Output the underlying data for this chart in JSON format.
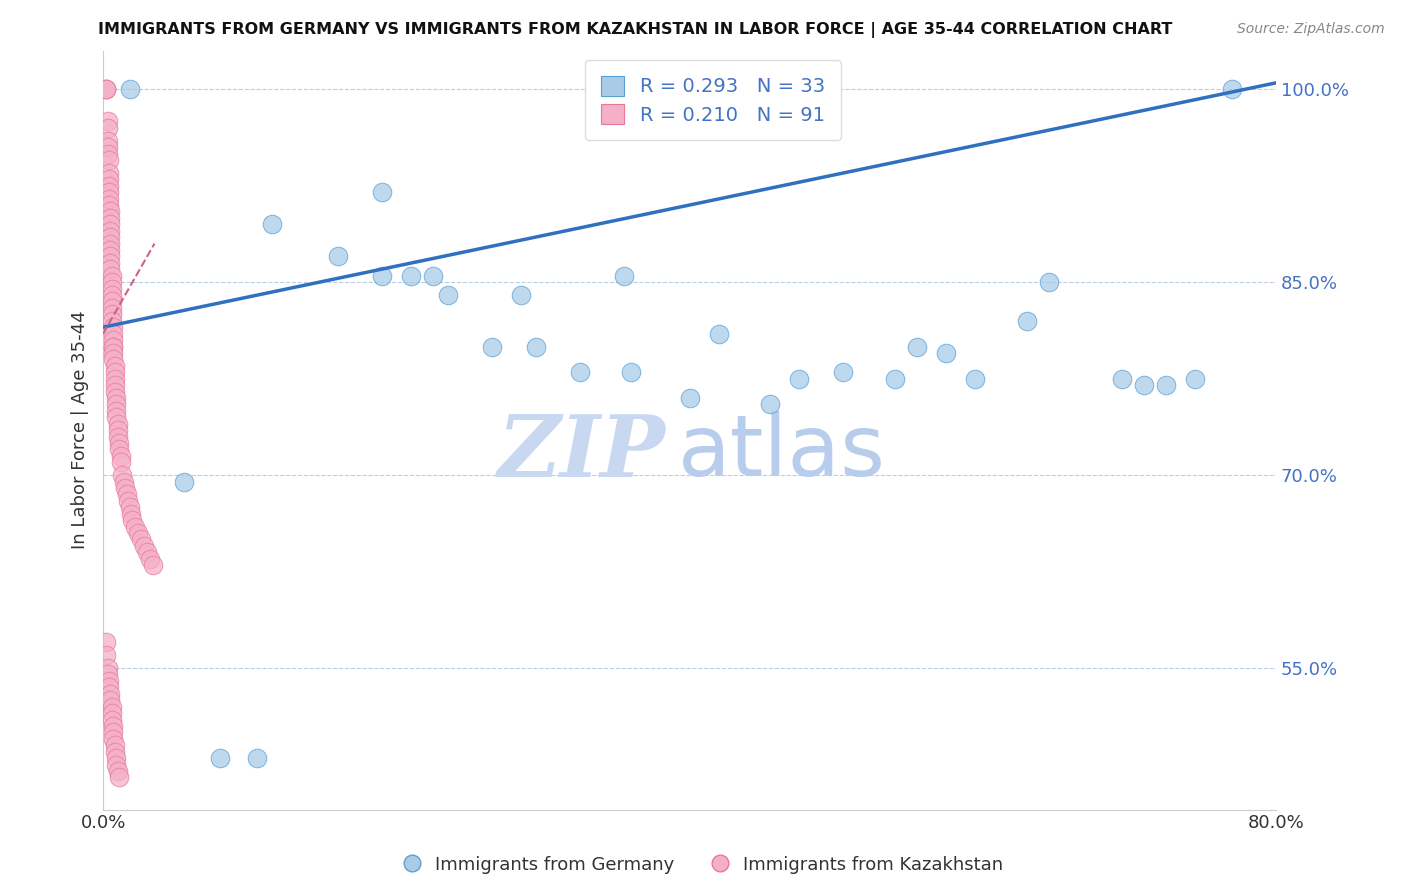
{
  "title": "IMMIGRANTS FROM GERMANY VS IMMIGRANTS FROM KAZAKHSTAN IN LABOR FORCE | AGE 35-44 CORRELATION CHART",
  "source": "Source: ZipAtlas.com",
  "ylabel_left": "In Labor Force | Age 35-44",
  "xlim": [
    0.0,
    0.8
  ],
  "ylim": [
    0.44,
    1.03
  ],
  "yticks": [
    0.55,
    0.7,
    0.85,
    1.0
  ],
  "ytick_labels": [
    "55.0%",
    "70.0%",
    "85.0%",
    "100.0%"
  ],
  "legend_germany": "R = 0.293   N = 33",
  "legend_kazakhstan": "R = 0.210   N = 91",
  "germany_color": "#a8cce8",
  "kazakhstan_color": "#f4b0c8",
  "germany_edge_color": "#5a9fd4",
  "kazakhstan_edge_color": "#e87898",
  "trendline_germany_color": "#3070c0",
  "trendline_kazakhstan_color": "#d06080",
  "watermark_zip": "ZIP",
  "watermark_atlas": "atlas",
  "watermark_color": "#c8d8f0",
  "germany_scatter_x": [
    0.018,
    0.055,
    0.08,
    0.105,
    0.115,
    0.16,
    0.19,
    0.19,
    0.21,
    0.225,
    0.235,
    0.265,
    0.285,
    0.295,
    0.325,
    0.355,
    0.36,
    0.4,
    0.42,
    0.455,
    0.475,
    0.505,
    0.54,
    0.555,
    0.575,
    0.595,
    0.63,
    0.645,
    0.695,
    0.71,
    0.725,
    0.745,
    0.77
  ],
  "germany_scatter_y": [
    1.0,
    0.695,
    0.48,
    0.48,
    0.895,
    0.87,
    0.855,
    0.92,
    0.855,
    0.855,
    0.84,
    0.8,
    0.84,
    0.8,
    0.78,
    0.855,
    0.78,
    0.76,
    0.81,
    0.755,
    0.775,
    0.78,
    0.775,
    0.8,
    0.795,
    0.775,
    0.82,
    0.85,
    0.775,
    0.77,
    0.77,
    0.775,
    1.0
  ],
  "kazakhstan_scatter_x": [
    0.002,
    0.002,
    0.002,
    0.003,
    0.003,
    0.003,
    0.003,
    0.003,
    0.004,
    0.004,
    0.004,
    0.004,
    0.004,
    0.004,
    0.004,
    0.005,
    0.005,
    0.005,
    0.005,
    0.005,
    0.005,
    0.005,
    0.005,
    0.005,
    0.005,
    0.006,
    0.006,
    0.006,
    0.006,
    0.006,
    0.006,
    0.006,
    0.006,
    0.007,
    0.007,
    0.007,
    0.007,
    0.007,
    0.007,
    0.007,
    0.008,
    0.008,
    0.008,
    0.008,
    0.008,
    0.009,
    0.009,
    0.009,
    0.009,
    0.01,
    0.01,
    0.01,
    0.011,
    0.011,
    0.012,
    0.012,
    0.013,
    0.014,
    0.015,
    0.016,
    0.017,
    0.018,
    0.019,
    0.02,
    0.022,
    0.024,
    0.026,
    0.028,
    0.03,
    0.032,
    0.034,
    0.002,
    0.002,
    0.003,
    0.003,
    0.004,
    0.004,
    0.005,
    0.005,
    0.006,
    0.006,
    0.006,
    0.007,
    0.007,
    0.007,
    0.008,
    0.008,
    0.009,
    0.009,
    0.01,
    0.011
  ],
  "kazakhstan_scatter_y": [
    1.0,
    1.0,
    1.0,
    0.975,
    0.97,
    0.96,
    0.955,
    0.95,
    0.945,
    0.935,
    0.93,
    0.925,
    0.92,
    0.915,
    0.91,
    0.905,
    0.9,
    0.895,
    0.89,
    0.885,
    0.88,
    0.875,
    0.87,
    0.865,
    0.86,
    0.855,
    0.85,
    0.845,
    0.84,
    0.835,
    0.83,
    0.825,
    0.82,
    0.815,
    0.81,
    0.805,
    0.8,
    0.8,
    0.795,
    0.79,
    0.785,
    0.78,
    0.775,
    0.77,
    0.765,
    0.76,
    0.755,
    0.75,
    0.745,
    0.74,
    0.735,
    0.73,
    0.725,
    0.72,
    0.715,
    0.71,
    0.7,
    0.695,
    0.69,
    0.685,
    0.68,
    0.675,
    0.67,
    0.665,
    0.66,
    0.655,
    0.65,
    0.645,
    0.64,
    0.635,
    0.63,
    0.57,
    0.56,
    0.55,
    0.545,
    0.54,
    0.535,
    0.53,
    0.525,
    0.52,
    0.515,
    0.51,
    0.505,
    0.5,
    0.495,
    0.49,
    0.485,
    0.48,
    0.475,
    0.47,
    0.465
  ],
  "germany_trend_x": [
    0.0,
    0.8
  ],
  "germany_trend_y": [
    0.815,
    1.005
  ],
  "kazakhstan_trend_x": [
    0.0,
    0.035
  ],
  "kazakhstan_trend_y": [
    0.81,
    0.88
  ]
}
